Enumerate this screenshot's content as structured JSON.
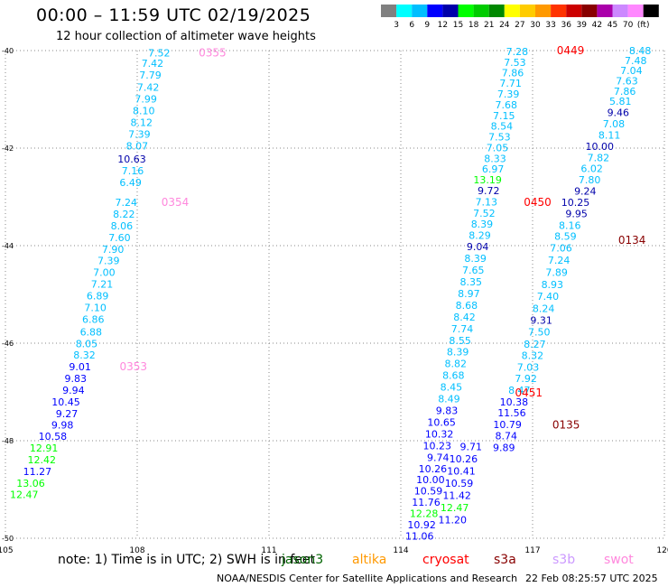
{
  "header": {
    "title": "00:00 – 11:59 UTC 02/19/2025",
    "subtitle": "12 hour collection of altimeter wave heights"
  },
  "legend": {
    "colors": [
      "#808080",
      "#00ffff",
      "#00bfff",
      "#0000ff",
      "#0000aa",
      "#00ff00",
      "#00cc00",
      "#008800",
      "#ffff00",
      "#ffcc00",
      "#ff9900",
      "#ff3300",
      "#cc0000",
      "#880000",
      "#aa00aa",
      "#cc88ff",
      "#ff88ff",
      "#000000"
    ],
    "labels": [
      "3",
      "6",
      "9",
      "12",
      "15",
      "18",
      "21",
      "24",
      "27",
      "30",
      "33",
      "36",
      "39",
      "42",
      "45",
      "70",
      "(ft)"
    ]
  },
  "notes": {
    "note_text": "note:  1) Time is in UTC; 2) SWH is in feet",
    "satellites": [
      {
        "name": "jason3",
        "color": "#006400"
      },
      {
        "name": "altika",
        "color": "#ff9900"
      },
      {
        "name": "cryosat",
        "color": "#ff0000"
      },
      {
        "name": "s3a",
        "color": "#880000"
      },
      {
        "name": "s3b",
        "color": "#cc99ff"
      },
      {
        "name": "swot",
        "color": "#ff88dd"
      }
    ]
  },
  "footer": {
    "credit": "NOAA/NESDIS Center for Satellite Applications and Research",
    "timestamp": "22 Feb 08:25:57 UTC 2025"
  },
  "chart_data": {
    "type": "scatter",
    "title": "00:00 – 11:59 UTC 02/19/2025",
    "subtitle": "12 hour collection of altimeter wave heights",
    "xlabel": "",
    "ylabel": "",
    "xlim": [
      105,
      120
    ],
    "ylim": [
      -50,
      -40
    ],
    "x_ticks": [
      "105",
      "108",
      "111",
      "114",
      "117",
      "120"
    ],
    "y_ticks": [
      "-40",
      "-42",
      "-44",
      "-46",
      "-48",
      "-50"
    ],
    "grid": true,
    "units": "ft",
    "tracks": [
      {
        "color_key": "swot",
        "points": [
          {
            "x": 108.75,
            "y": -40.05,
            "v": "7.52",
            "c": "#00bfff"
          },
          {
            "x": 108.6,
            "y": -40.26,
            "v": "7.42",
            "c": "#00bfff"
          },
          {
            "x": 108.55,
            "y": -40.5,
            "v": "7.79",
            "c": "#00bfff"
          },
          {
            "x": 108.5,
            "y": -40.75,
            "v": "7.42",
            "c": "#00bfff"
          },
          {
            "x": 108.45,
            "y": -40.99,
            "v": "7.99",
            "c": "#00bfff"
          },
          {
            "x": 108.4,
            "y": -41.23,
            "v": "8.10",
            "c": "#00bfff"
          },
          {
            "x": 108.35,
            "y": -41.47,
            "v": "8.12",
            "c": "#00bfff"
          },
          {
            "x": 108.3,
            "y": -41.71,
            "v": "7.39",
            "c": "#00bfff"
          },
          {
            "x": 108.25,
            "y": -41.95,
            "v": "8.07",
            "c": "#00bfff"
          },
          {
            "x": 108.2,
            "y": -42.22,
            "v": "10.63",
            "c": "#0000aa"
          },
          {
            "x": 108.15,
            "y": -42.46,
            "v": "7.16",
            "c": "#00bfff"
          },
          {
            "x": 108.1,
            "y": -42.7,
            "v": "6.49",
            "c": "#00bfff"
          },
          {
            "x": 108.0,
            "y": -43.11,
            "v": "7.24",
            "c": "#00bfff"
          },
          {
            "x": 107.95,
            "y": -43.35,
            "v": "8.22",
            "c": "#00bfff"
          },
          {
            "x": 107.9,
            "y": -43.59,
            "v": "8.06",
            "c": "#00bfff"
          },
          {
            "x": 107.85,
            "y": -43.83,
            "v": "7.60",
            "c": "#00bfff"
          },
          {
            "x": 107.7,
            "y": -44.07,
            "v": "7.90",
            "c": "#00bfff"
          },
          {
            "x": 107.6,
            "y": -44.31,
            "v": "7.39",
            "c": "#00bfff"
          },
          {
            "x": 107.5,
            "y": -44.55,
            "v": "7.00",
            "c": "#00bfff"
          },
          {
            "x": 107.45,
            "y": -44.79,
            "v": "7.21",
            "c": "#00bfff"
          },
          {
            "x": 107.35,
            "y": -45.03,
            "v": "6.89",
            "c": "#00bfff"
          },
          {
            "x": 107.3,
            "y": -45.27,
            "v": "7.10",
            "c": "#00bfff"
          },
          {
            "x": 107.25,
            "y": -45.51,
            "v": "6.86",
            "c": "#00bfff"
          },
          {
            "x": 107.2,
            "y": -45.77,
            "v": "6.88",
            "c": "#00bfff"
          },
          {
            "x": 107.1,
            "y": -46.01,
            "v": "8.05",
            "c": "#00bfff"
          },
          {
            "x": 107.05,
            "y": -46.24,
            "v": "8.32",
            "c": "#00bfff"
          },
          {
            "x": 106.95,
            "y": -46.48,
            "v": "9.01",
            "c": "#0000ff"
          },
          {
            "x": 106.85,
            "y": -46.72,
            "v": "9.83",
            "c": "#0000ff"
          },
          {
            "x": 106.8,
            "y": -46.96,
            "v": "9.94",
            "c": "#0000ff"
          },
          {
            "x": 106.7,
            "y": -47.2,
            "v": "10.45",
            "c": "#0000ff"
          },
          {
            "x": 106.65,
            "y": -47.44,
            "v": "9.27",
            "c": "#0000ff"
          },
          {
            "x": 106.55,
            "y": -47.68,
            "v": "9.98",
            "c": "#0000ff"
          },
          {
            "x": 106.4,
            "y": -47.91,
            "v": "10.58",
            "c": "#0000ff"
          },
          {
            "x": 106.2,
            "y": -48.15,
            "v": "12.91",
            "c": "#00ff00"
          },
          {
            "x": 106.15,
            "y": -48.39,
            "v": "12.42",
            "c": "#00ff00"
          },
          {
            "x": 106.05,
            "y": -48.63,
            "v": "11.27",
            "c": "#0000ff"
          },
          {
            "x": 105.9,
            "y": -48.87,
            "v": "13.06",
            "c": "#00ff00"
          },
          {
            "x": 105.75,
            "y": -49.1,
            "v": "12.47",
            "c": "#00ff00"
          }
        ]
      },
      {
        "color_key": "track-ascending-right",
        "points": [
          {
            "x": 119.7,
            "y": -40.0,
            "v": "8.48",
            "c": "#00bfff"
          },
          {
            "x": 119.6,
            "y": -40.2,
            "v": "7.48",
            "c": "#00bfff"
          },
          {
            "x": 119.5,
            "y": -40.41,
            "v": "7.04",
            "c": "#00bfff"
          },
          {
            "x": 119.4,
            "y": -40.62,
            "v": "7.63",
            "c": "#00bfff"
          },
          {
            "x": 119.35,
            "y": -40.83,
            "v": "7.86",
            "c": "#00bfff"
          },
          {
            "x": 119.25,
            "y": -41.04,
            "v": "5.81",
            "c": "#00bfff"
          },
          {
            "x": 119.2,
            "y": -41.27,
            "v": "9.46",
            "c": "#0000aa"
          },
          {
            "x": 119.1,
            "y": -41.5,
            "v": "7.08",
            "c": "#00bfff"
          },
          {
            "x": 119.0,
            "y": -41.73,
            "v": "8.11",
            "c": "#00bfff"
          },
          {
            "x": 118.85,
            "y": -41.96,
            "v": "10.00",
            "c": "#0000aa"
          },
          {
            "x": 118.75,
            "y": -42.19,
            "v": "7.82",
            "c": "#00bfff"
          },
          {
            "x": 118.6,
            "y": -42.42,
            "v": "6.02",
            "c": "#00bfff"
          },
          {
            "x": 118.55,
            "y": -42.65,
            "v": "7.80",
            "c": "#00bfff"
          },
          {
            "x": 118.45,
            "y": -42.88,
            "v": "9.24",
            "c": "#0000aa"
          },
          {
            "x": 118.3,
            "y": -43.11,
            "v": "10.25",
            "c": "#0000aa"
          },
          {
            "x": 118.25,
            "y": -43.34,
            "v": "9.95",
            "c": "#0000aa"
          },
          {
            "x": 118.1,
            "y": -43.58,
            "v": "8.16",
            "c": "#00bfff"
          },
          {
            "x": 118.0,
            "y": -43.81,
            "v": "8.59",
            "c": "#00bfff"
          },
          {
            "x": 117.9,
            "y": -44.05,
            "v": "7.06",
            "c": "#00bfff"
          },
          {
            "x": 117.85,
            "y": -44.3,
            "v": "7.24",
            "c": "#00bfff"
          },
          {
            "x": 117.8,
            "y": -44.55,
            "v": "7.89",
            "c": "#00bfff"
          },
          {
            "x": 117.7,
            "y": -44.8,
            "v": "8.93",
            "c": "#00bfff"
          },
          {
            "x": 117.6,
            "y": -45.04,
            "v": "7.40",
            "c": "#00bfff"
          },
          {
            "x": 117.5,
            "y": -45.29,
            "v": "8.24",
            "c": "#00bfff"
          },
          {
            "x": 117.45,
            "y": -45.53,
            "v": "9.31",
            "c": "#0000aa"
          },
          {
            "x": 117.4,
            "y": -45.77,
            "v": "7.50",
            "c": "#00bfff"
          },
          {
            "x": 117.3,
            "y": -46.02,
            "v": "8.27",
            "c": "#00bfff"
          },
          {
            "x": 117.25,
            "y": -46.25,
            "v": "8.32",
            "c": "#00bfff"
          },
          {
            "x": 117.15,
            "y": -46.49,
            "v": "7.03",
            "c": "#00bfff"
          },
          {
            "x": 117.1,
            "y": -46.72,
            "v": "7.92",
            "c": "#00bfff"
          },
          {
            "x": 116.95,
            "y": -46.96,
            "v": "8.47",
            "c": "#00bfff"
          },
          {
            "x": 116.9,
            "y": -47.2,
            "v": "10.38",
            "c": "#0000ff"
          },
          {
            "x": 116.85,
            "y": -47.43,
            "v": "11.56",
            "c": "#0000ff"
          },
          {
            "x": 116.75,
            "y": -47.67,
            "v": "10.79",
            "c": "#0000ff"
          },
          {
            "x": 116.65,
            "y": -47.9,
            "v": "8.74",
            "c": "#0000ff"
          },
          {
            "x": 116.6,
            "y": -48.14,
            "v": "9.89",
            "c": "#0000ff"
          }
        ]
      },
      {
        "color_key": "track-descending-center",
        "points": [
          {
            "x": 116.9,
            "y": -40.02,
            "v": "7.28",
            "c": "#00bfff"
          },
          {
            "x": 116.85,
            "y": -40.24,
            "v": "7.53",
            "c": "#00bfff"
          },
          {
            "x": 116.8,
            "y": -40.45,
            "v": "7.86",
            "c": "#00bfff"
          },
          {
            "x": 116.75,
            "y": -40.67,
            "v": "7.71",
            "c": "#00bfff"
          },
          {
            "x": 116.7,
            "y": -40.89,
            "v": "7.39",
            "c": "#00bfff"
          },
          {
            "x": 116.65,
            "y": -41.11,
            "v": "7.68",
            "c": "#00bfff"
          },
          {
            "x": 116.6,
            "y": -41.33,
            "v": "7.15",
            "c": "#00bfff"
          },
          {
            "x": 116.55,
            "y": -41.55,
            "v": "8.54",
            "c": "#00bfff"
          },
          {
            "x": 116.5,
            "y": -41.77,
            "v": "7.53",
            "c": "#00bfff"
          },
          {
            "x": 116.45,
            "y": -41.99,
            "v": "7.05",
            "c": "#00bfff"
          },
          {
            "x": 116.4,
            "y": -42.21,
            "v": "8.33",
            "c": "#00bfff"
          },
          {
            "x": 116.35,
            "y": -42.43,
            "v": "6.97",
            "c": "#00bfff"
          },
          {
            "x": 116.3,
            "y": -42.65,
            "v": "13.19",
            "c": "#00ff00"
          },
          {
            "x": 116.25,
            "y": -42.87,
            "v": "9.72",
            "c": "#0000aa"
          },
          {
            "x": 116.2,
            "y": -43.1,
            "v": "7.13",
            "c": "#00bfff"
          },
          {
            "x": 116.15,
            "y": -43.33,
            "v": "7.52",
            "c": "#00bfff"
          },
          {
            "x": 116.1,
            "y": -43.56,
            "v": "8.39",
            "c": "#00bfff"
          },
          {
            "x": 116.05,
            "y": -43.79,
            "v": "8.29",
            "c": "#00bfff"
          },
          {
            "x": 116.0,
            "y": -44.02,
            "v": "9.04",
            "c": "#0000aa"
          },
          {
            "x": 115.95,
            "y": -44.26,
            "v": "8.39",
            "c": "#00bfff"
          },
          {
            "x": 115.9,
            "y": -44.5,
            "v": "7.65",
            "c": "#00bfff"
          },
          {
            "x": 115.85,
            "y": -44.74,
            "v": "8.35",
            "c": "#00bfff"
          },
          {
            "x": 115.8,
            "y": -44.98,
            "v": "8.97",
            "c": "#00bfff"
          },
          {
            "x": 115.75,
            "y": -45.22,
            "v": "8.68",
            "c": "#00bfff"
          },
          {
            "x": 115.7,
            "y": -45.46,
            "v": "8.42",
            "c": "#00bfff"
          },
          {
            "x": 115.65,
            "y": -45.7,
            "v": "7.74",
            "c": "#00bfff"
          },
          {
            "x": 115.6,
            "y": -45.94,
            "v": "8.55",
            "c": "#00bfff"
          },
          {
            "x": 115.55,
            "y": -46.18,
            "v": "8.39",
            "c": "#00bfff"
          },
          {
            "x": 115.5,
            "y": -46.42,
            "v": "8.82",
            "c": "#00bfff"
          },
          {
            "x": 115.45,
            "y": -46.66,
            "v": "8.68",
            "c": "#00bfff"
          },
          {
            "x": 115.4,
            "y": -46.9,
            "v": "8.45",
            "c": "#00bfff"
          },
          {
            "x": 115.35,
            "y": -47.14,
            "v": "8.49",
            "c": "#00bfff"
          },
          {
            "x": 115.3,
            "y": -47.38,
            "v": "9.83",
            "c": "#0000ff"
          },
          {
            "x": 115.25,
            "y": -47.62,
            "v": "10.65",
            "c": "#0000ff"
          },
          {
            "x": 115.2,
            "y": -47.86,
            "v": "10.32",
            "c": "#0000ff"
          },
          {
            "x": 115.15,
            "y": -48.1,
            "v": "10.23",
            "c": "#0000ff"
          },
          {
            "x": 115.1,
            "y": -48.34,
            "v": "9.74",
            "c": "#0000ff"
          },
          {
            "x": 115.05,
            "y": -48.57,
            "v": "10.26",
            "c": "#0000ff"
          },
          {
            "x": 115.0,
            "y": -48.8,
            "v": "10.00",
            "c": "#0000ff"
          },
          {
            "x": 114.95,
            "y": -49.03,
            "v": "10.59",
            "c": "#0000ff"
          },
          {
            "x": 114.9,
            "y": -49.26,
            "v": "11.76",
            "c": "#0000ff"
          },
          {
            "x": 114.85,
            "y": -49.49,
            "v": "12.28",
            "c": "#00ff00"
          },
          {
            "x": 114.8,
            "y": -49.72,
            "v": "10.92",
            "c": "#0000ff"
          },
          {
            "x": 114.75,
            "y": -49.95,
            "v": "11.06",
            "c": "#0000ff"
          }
        ]
      },
      {
        "color_key": "track-ascending-inner",
        "points": [
          {
            "x": 115.85,
            "y": -48.12,
            "v": "9.71",
            "c": "#0000ff"
          },
          {
            "x": 115.75,
            "y": -48.37,
            "v": "10.26",
            "c": "#0000ff"
          },
          {
            "x": 115.7,
            "y": -48.62,
            "v": "10.41",
            "c": "#0000ff"
          },
          {
            "x": 115.65,
            "y": -48.87,
            "v": "10.59",
            "c": "#0000ff"
          },
          {
            "x": 115.6,
            "y": -49.12,
            "v": "11.42",
            "c": "#0000ff"
          },
          {
            "x": 115.55,
            "y": -49.37,
            "v": "12.47",
            "c": "#00ff00"
          },
          {
            "x": 115.5,
            "y": -49.62,
            "v": "11.20",
            "c": "#0000ff"
          }
        ]
      }
    ],
    "time_labels": [
      {
        "x": 109.4,
        "y": -40.05,
        "v": "0355",
        "c": "#ff88dd"
      },
      {
        "x": 108.55,
        "y": -43.11,
        "v": "0354",
        "c": "#ff88dd"
      },
      {
        "x": 107.6,
        "y": -46.48,
        "v": "0353",
        "c": "#ff88dd"
      },
      {
        "x": 117.55,
        "y": -40.0,
        "v": "0449",
        "c": "#ff0000"
      },
      {
        "x": 116.8,
        "y": -43.11,
        "v": "0450",
        "c": "#ff0000"
      },
      {
        "x": 116.6,
        "y": -47.02,
        "v": "0451",
        "c": "#ff0000"
      },
      {
        "x": 118.95,
        "y": -43.89,
        "v": "0134",
        "c": "#880000"
      },
      {
        "x": 117.45,
        "y": -47.68,
        "v": "0135",
        "c": "#880000"
      }
    ]
  }
}
